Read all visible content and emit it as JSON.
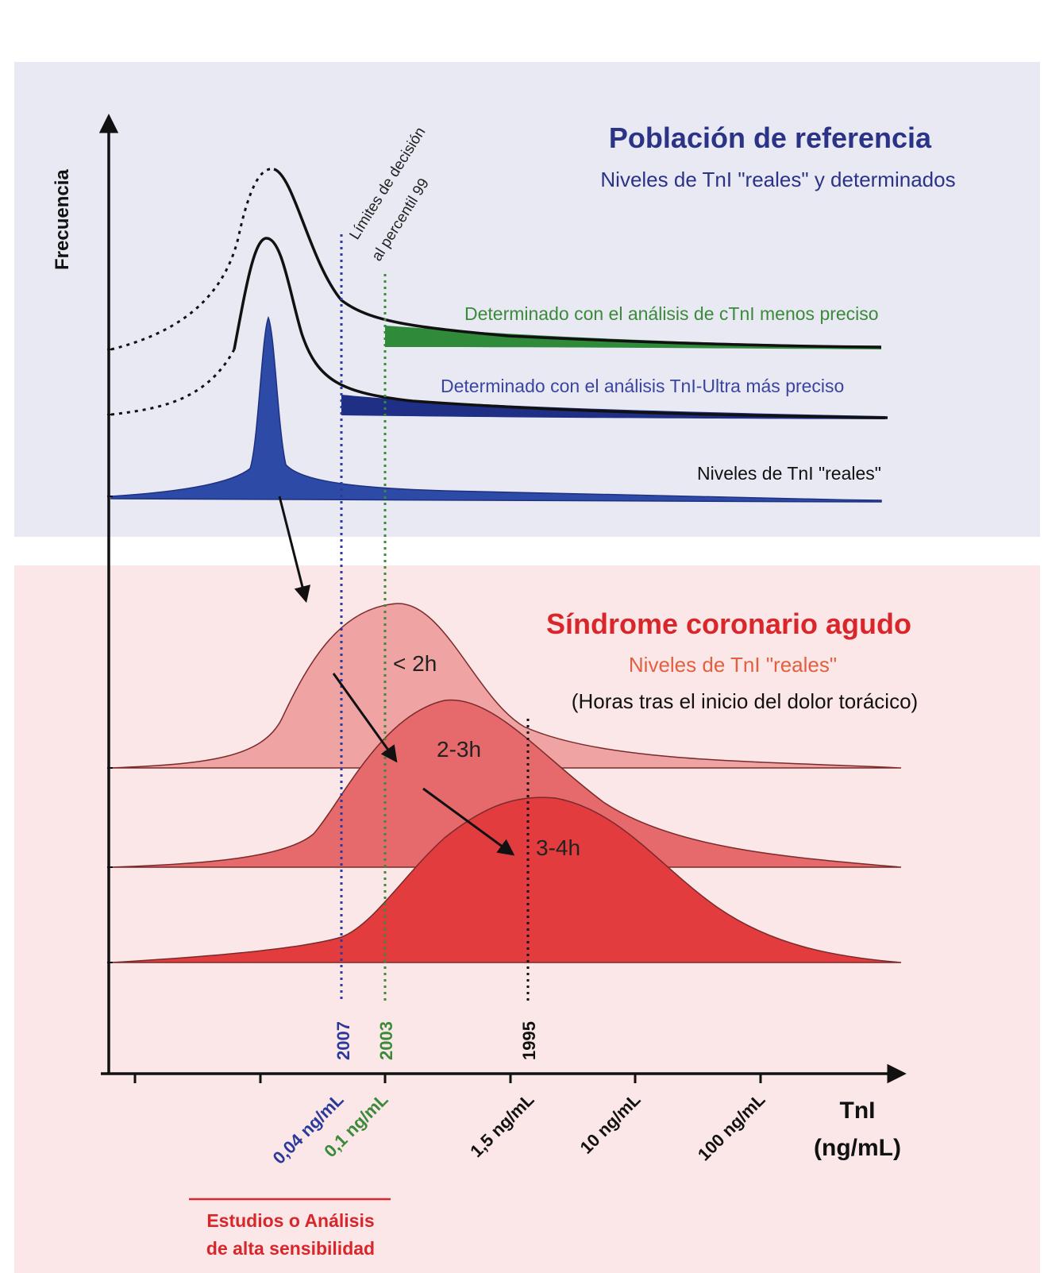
{
  "y_axis_label": "Frecuencia",
  "x_axis_label": [
    "TnI",
    "(ng/mL)"
  ],
  "reference": {
    "title": "Población de referencia",
    "subtitle": "Niveles de TnI \"reales\" y determinados",
    "curves": [
      {
        "label": "Determinado con el análisis de cTnI menos preciso",
        "color": "#3b8a3a"
      },
      {
        "label": "Determinado con el análisis TnI-Ultra más preciso",
        "color": "#2b3a9a"
      },
      {
        "label": "Niveles de TnI \"reales\"",
        "color": "#2b4aa8"
      }
    ]
  },
  "decision_limits_label": [
    "Límites de decisión",
    "al percentil 99"
  ],
  "acs": {
    "title": "Síndrome coronario agudo",
    "subtitle": "Niveles de TnI \"reales\"",
    "note": "(Horas tras el inicio del dolor torácico)",
    "curves": [
      {
        "label": "< 2h",
        "color": "#efa3a3"
      },
      {
        "label": "2-3h",
        "color": "#e66a6c"
      },
      {
        "label": "3-4h",
        "color": "#e23c3e"
      }
    ]
  },
  "x_ticks": [
    {
      "label": "0,04 ng/mL",
      "color": "#2b3a9a"
    },
    {
      "label": "0,1 ng/mL",
      "color": "#3b8a3a"
    },
    {
      "label": "1,5 ng/mL",
      "color": "#111111"
    },
    {
      "label": "10 ng/mL",
      "color": "#111111"
    },
    {
      "label": "100 ng/mL",
      "color": "#111111"
    }
  ],
  "years": [
    {
      "label": "2007",
      "color": "#2b3a9a"
    },
    {
      "label": "2003",
      "color": "#3b8a3a"
    },
    {
      "label": "1995",
      "color": "#111111"
    }
  ],
  "footnote": [
    "Estudios o Análisis",
    "de alta sensibilidad"
  ],
  "colors": {
    "reference_bg": "#e9e9f4",
    "acs_bg": "#fbe7e7",
    "accent_red": "#d9262b",
    "accent_blue": "#2a3386"
  }
}
